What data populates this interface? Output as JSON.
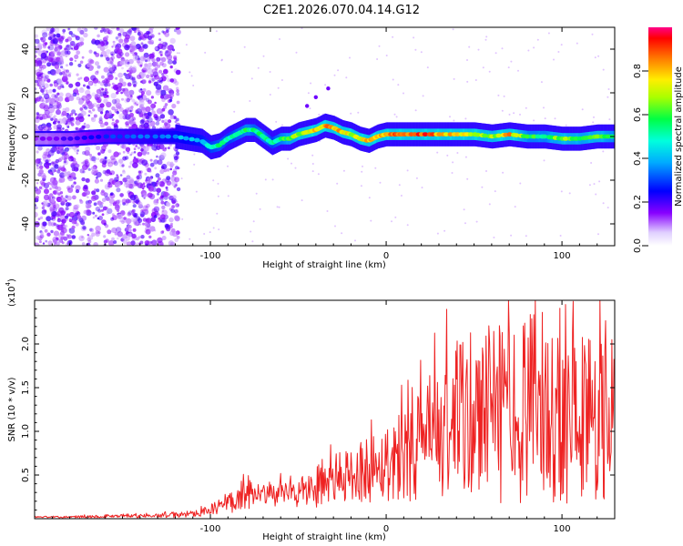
{
  "title": "C2E1.2026.070.04.14.G12",
  "spectrogram": {
    "xlabel": "Height of straight line (km)",
    "ylabel": "Frequency (Hz)",
    "xlim": [
      -200,
      130
    ],
    "ylim": [
      -50,
      50
    ],
    "xticks": [
      "-100",
      "0",
      "100"
    ],
    "yticks": [
      "-40",
      "-20",
      "0",
      "20",
      "40"
    ],
    "colorbar_label": "Normalized spectral amplitude",
    "colorbar_ticks": [
      "0.0",
      "0.2",
      "0.4",
      "0.6",
      "0.8"
    ]
  },
  "chart_data": [
    {
      "type": "heatmap",
      "title": "C2E1.2026.070.04.14.G12",
      "xlabel": "Height of straight line (km)",
      "ylabel": "Frequency (Hz)",
      "xlim": [
        -200,
        130
      ],
      "ylim": [
        -50,
        50
      ],
      "xticks": [
        -100,
        0,
        100
      ],
      "yticks": [
        -40,
        -20,
        0,
        20,
        40
      ],
      "colorbar": {
        "label": "Normalized spectral amplitude",
        "range": [
          0,
          1
        ],
        "ticks": [
          0.0,
          0.2,
          0.4,
          0.6,
          0.8
        ]
      },
      "ridge": {
        "x": [
          -200,
          -180,
          -160,
          -140,
          -120,
          -105,
          -100,
          -95,
          -90,
          -85,
          -80,
          -75,
          -70,
          -65,
          -60,
          -55,
          -50,
          -45,
          -40,
          -35,
          -30,
          -25,
          -20,
          -15,
          -10,
          -5,
          0,
          5,
          10,
          20,
          30,
          40,
          50,
          60,
          70,
          80,
          90,
          100,
          110,
          120,
          130
        ],
        "freq": [
          -1,
          -1,
          0,
          0,
          0,
          -2,
          -5,
          -4,
          -1,
          1,
          3,
          3,
          0,
          -3,
          -1,
          -1,
          1,
          2,
          3,
          5,
          4,
          2,
          1,
          -1,
          -2,
          0,
          1,
          1,
          1,
          1,
          1,
          1,
          1,
          0,
          1,
          0,
          0,
          -1,
          -1,
          0,
          0
        ],
        "amplitude": [
          0.15,
          0.2,
          0.3,
          0.35,
          0.4,
          0.45,
          0.5,
          0.55,
          0.5,
          0.55,
          0.6,
          0.55,
          0.6,
          0.5,
          0.6,
          0.65,
          0.7,
          0.75,
          0.8,
          0.85,
          0.85,
          0.8,
          0.75,
          0.8,
          0.8,
          0.85,
          0.85,
          0.95,
          0.95,
          0.95,
          0.9,
          0.8,
          0.75,
          0.7,
          0.85,
          0.6,
          0.6,
          0.7,
          0.65,
          0.7,
          0.6
        ]
      },
      "off_band_scatter": "dense low-amplitude points (0.1-0.2) across all frequencies for heights -200 to -120 km"
    },
    {
      "type": "line",
      "xlabel": "Height of straight line (km)",
      "ylabel": "SNR (10 * v/v)",
      "yscale_label": "(x10",
      "yscale_exp": "4",
      "xlim": [
        -200,
        130
      ],
      "ylim": [
        0,
        2.5
      ],
      "xticks": [
        -100,
        0,
        100
      ],
      "yticks": [
        0.5,
        1.0,
        1.5,
        2.0
      ],
      "color": "#ee2222",
      "series": [
        {
          "name": "SNR",
          "x": [
            -200,
            -180,
            -160,
            -140,
            -120,
            -110,
            -100,
            -90,
            -80,
            -75,
            -70,
            -60,
            -50,
            -40,
            -30,
            -20,
            -10,
            0,
            10,
            20,
            30,
            40,
            50,
            60,
            70,
            80,
            90,
            100,
            110,
            120,
            130
          ],
          "mean": [
            0.02,
            0.02,
            0.03,
            0.03,
            0.04,
            0.06,
            0.1,
            0.18,
            0.28,
            0.25,
            0.26,
            0.28,
            0.3,
            0.35,
            0.45,
            0.5,
            0.58,
            0.65,
            0.75,
            0.85,
            0.95,
            1.05,
            1.15,
            1.2,
            1.22,
            1.25,
            1.25,
            1.2,
            1.2,
            1.15,
            1.15
          ],
          "noise": [
            0.01,
            0.01,
            0.02,
            0.02,
            0.03,
            0.04,
            0.06,
            0.12,
            0.18,
            0.14,
            0.14,
            0.15,
            0.18,
            0.22,
            0.28,
            0.32,
            0.4,
            0.45,
            0.55,
            0.65,
            0.85,
            0.95,
            1.0,
            1.05,
            1.05,
            1.1,
            1.1,
            1.05,
            1.05,
            1.0,
            1.0
          ]
        }
      ]
    }
  ]
}
